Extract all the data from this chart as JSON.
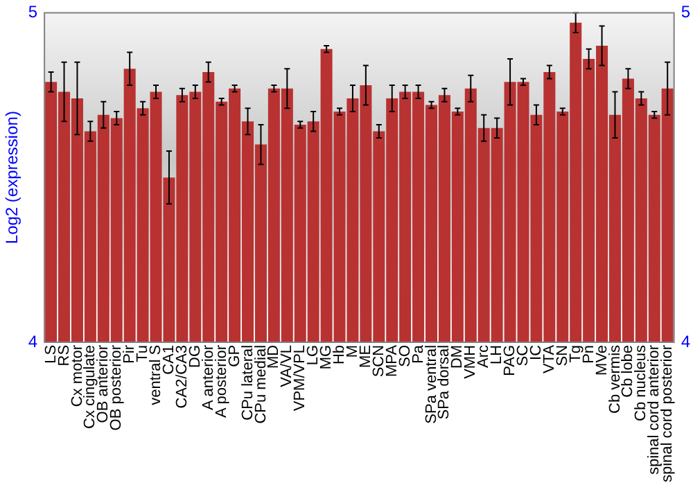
{
  "chart_data": {
    "type": "bar",
    "ylabel": "Log2 (expression)",
    "categories": [
      "LS",
      "RS",
      "Cx motor",
      "Cx cingulate",
      "OB anterior",
      "OB posterior",
      "Pir",
      "Tu",
      "ventral S",
      "CA1",
      "CA2/CA3",
      "DG",
      "A anterior",
      "A posterior",
      "GP",
      "CPu lateral",
      "CPu medial",
      "MD",
      "VA/VL",
      "VPM/VPL",
      "LG",
      "MG",
      "Hb",
      "M",
      "ME",
      "SCN",
      "MPA",
      "SO",
      "Pa",
      "SPa ventral",
      "SPa dorsal",
      "DM",
      "VMH",
      "Arc",
      "LH",
      "PAG",
      "SC",
      "IC",
      "VTA",
      "SN",
      "Tg",
      "Pn",
      "MVe",
      "Cb vermis",
      "Cb lobe",
      "Cb nucleus",
      "spinal cord anterior",
      "spinal cord posterior"
    ],
    "values": [
      4.79,
      4.76,
      4.74,
      4.64,
      4.69,
      4.68,
      4.83,
      4.71,
      4.76,
      4.5,
      4.75,
      4.76,
      4.82,
      4.73,
      4.77,
      4.67,
      4.6,
      4.77,
      4.77,
      4.66,
      4.67,
      4.89,
      4.7,
      4.74,
      4.78,
      4.64,
      4.74,
      4.76,
      4.76,
      4.72,
      4.75,
      4.7,
      4.77,
      4.65,
      4.65,
      4.79,
      4.79,
      4.69,
      4.82,
      4.7,
      4.97,
      4.86,
      4.9,
      4.69,
      4.8,
      4.74,
      4.69,
      4.77
    ],
    "errors": [
      0.03,
      0.09,
      0.11,
      0.03,
      0.04,
      0.02,
      0.05,
      0.02,
      0.02,
      0.08,
      0.02,
      0.02,
      0.03,
      0.01,
      0.01,
      0.04,
      0.06,
      0.01,
      0.06,
      0.01,
      0.03,
      0.01,
      0.01,
      0.04,
      0.06,
      0.02,
      0.04,
      0.02,
      0.02,
      0.01,
      0.02,
      0.01,
      0.04,
      0.04,
      0.03,
      0.07,
      0.01,
      0.03,
      0.02,
      0.01,
      0.03,
      0.03,
      0.06,
      0.07,
      0.03,
      0.02,
      0.01,
      0.08
    ],
    "color": "#b83232",
    "ylim": [
      4,
      5
    ],
    "yticks": [
      4,
      5
    ],
    "y2lim": [
      4,
      5
    ],
    "y2ticks": [
      4,
      5
    ],
    "grid": false,
    "legend": false
  }
}
